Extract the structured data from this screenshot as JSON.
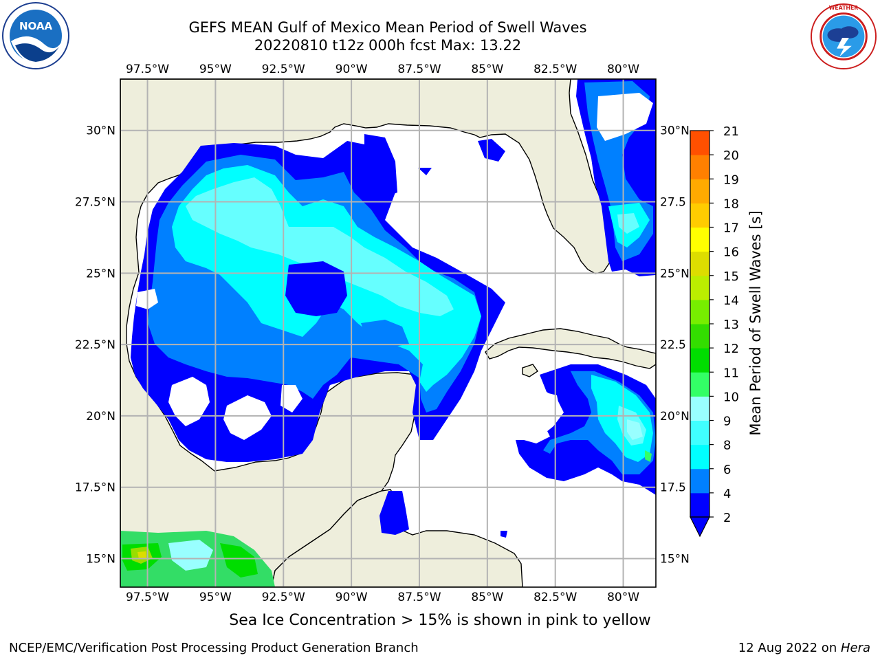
{
  "title": {
    "line1": "GEFS MEAN Gulf of Mexico Mean Period of Swell Waves",
    "line2": "20220810 t12z 000h fcst   Max: 13.22"
  },
  "logos": {
    "left": {
      "icon": "noaa-logo",
      "text": "NOAA",
      "ring_text": "NATIONAL OCEANIC AND ATMOSPHERIC ADMINISTRATION · U.S. DEPARTMENT OF COMMERCE"
    },
    "right": {
      "icon": "nws-logo",
      "ring_text": "NATIONAL WEATHER SERVICE"
    }
  },
  "map": {
    "lon_range": [
      -98.5,
      -78.8
    ],
    "lat_range": [
      14,
      31.8
    ],
    "lon_ticks": [
      {
        "value": -97.5,
        "label": "97.5°W"
      },
      {
        "value": -95,
        "label": "95°W"
      },
      {
        "value": -92.5,
        "label": "92.5°W"
      },
      {
        "value": -90,
        "label": "90°W"
      },
      {
        "value": -87.5,
        "label": "87.5°W"
      },
      {
        "value": -85,
        "label": "85°W"
      },
      {
        "value": -82.5,
        "label": "82.5°W"
      },
      {
        "value": -80,
        "label": "80°W"
      }
    ],
    "lat_ticks_left": [
      {
        "value": 30,
        "label": "30°N"
      },
      {
        "value": 27.5,
        "label": "27.5°N"
      },
      {
        "value": 25,
        "label": "25°N"
      },
      {
        "value": 22.5,
        "label": "22.5°N"
      },
      {
        "value": 20,
        "label": "20°N"
      },
      {
        "value": 17.5,
        "label": "17.5°N"
      },
      {
        "value": 15,
        "label": "15°N"
      }
    ],
    "lat_ticks_right": [
      {
        "value": 30,
        "label": "30°N"
      },
      {
        "value": 27.5,
        "label": "27.5"
      },
      {
        "value": 25,
        "label": "25°N"
      },
      {
        "value": 22.5,
        "label": "22.5"
      },
      {
        "value": 20,
        "label": "20°N"
      },
      {
        "value": 17.5,
        "label": "17.5"
      },
      {
        "value": 15,
        "label": "15°N"
      }
    ],
    "grid": true,
    "land_color": "#eeeedc",
    "water_color": "#ffffff"
  },
  "colorbar": {
    "label": "Mean Period of Swell Waves [s]",
    "levels": [
      "2",
      "4",
      "6",
      "8",
      "9",
      "10",
      "11",
      "12",
      "13",
      "14",
      "15",
      "16",
      "17",
      "18",
      "19",
      "20",
      "21"
    ],
    "colors": [
      "#0000ff",
      "#0080ff",
      "#00ffff",
      "#40ffff",
      "#99ffff",
      "#33ff66",
      "#00dd00",
      "#33dd00",
      "#77ee00",
      "#bbee00",
      "#dddd00",
      "#ffff00",
      "#ffcc00",
      "#ffaa00",
      "#ff8000",
      "#ff5000",
      "#ff2000",
      "#ff0000"
    ]
  },
  "subcaption": "Sea Ice Concentration > 15% is shown in pink to yellow",
  "footer": {
    "left": "NCEP/EMC/Verification Post Processing Product Generation Branch",
    "date": "12 Aug 2022 on ",
    "host": "Hera"
  }
}
